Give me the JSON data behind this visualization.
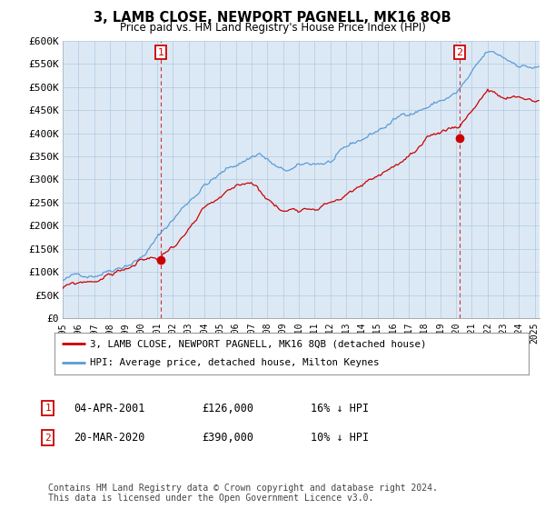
{
  "title": "3, LAMB CLOSE, NEWPORT PAGNELL, MK16 8QB",
  "subtitle": "Price paid vs. HM Land Registry's House Price Index (HPI)",
  "background_color": "#ffffff",
  "chart_bg_color": "#dce9f5",
  "grid_color": "#b0c8e0",
  "hpi_color": "#5b9bd5",
  "price_color": "#cc0000",
  "ylim": [
    0,
    600000
  ],
  "yticks": [
    0,
    50000,
    100000,
    150000,
    200000,
    250000,
    300000,
    350000,
    400000,
    450000,
    500000,
    550000,
    600000
  ],
  "ytick_labels": [
    "£0",
    "£50K",
    "£100K",
    "£150K",
    "£200K",
    "£250K",
    "£300K",
    "£350K",
    "£400K",
    "£450K",
    "£500K",
    "£550K",
    "£600K"
  ],
  "sale1_date": 2001.25,
  "sale1_price": 126000,
  "sale2_date": 2020.22,
  "sale2_price": 390000,
  "legend_line1": "3, LAMB CLOSE, NEWPORT PAGNELL, MK16 8QB (detached house)",
  "legend_line2": "HPI: Average price, detached house, Milton Keynes",
  "table_row1": [
    "1",
    "04-APR-2001",
    "£126,000",
    "16% ↓ HPI"
  ],
  "table_row2": [
    "2",
    "20-MAR-2020",
    "£390,000",
    "10% ↓ HPI"
  ],
  "footer": "Contains HM Land Registry data © Crown copyright and database right 2024.\nThis data is licensed under the Open Government Licence v3.0.",
  "xlim_start": 1995.0,
  "xlim_end": 2025.3
}
